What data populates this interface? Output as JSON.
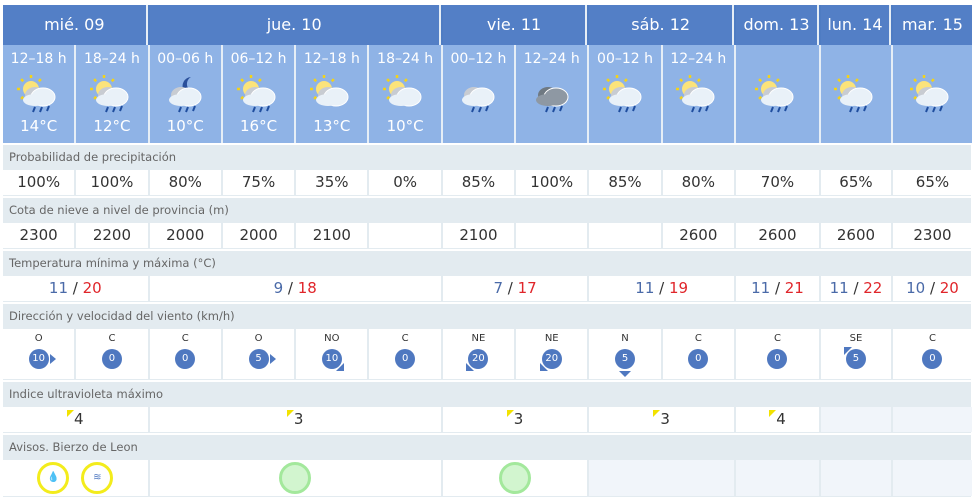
{
  "days": [
    {
      "label": "mié. 09",
      "tmin": "11",
      "tmax": "20",
      "uv": "4",
      "avisos": [
        "rain",
        "wind"
      ]
    },
    {
      "label": "jue. 10",
      "tmin": "9",
      "tmax": "18",
      "uv": "3",
      "avisos": [
        "green"
      ]
    },
    {
      "label": "vie. 11",
      "tmin": "7",
      "tmax": "17",
      "uv": "3",
      "avisos": [
        "green"
      ]
    },
    {
      "label": "sáb. 12",
      "tmin": "11",
      "tmax": "19",
      "uv": "3",
      "avisos": []
    },
    {
      "label": "dom. 13",
      "tmin": "11",
      "tmax": "21",
      "uv": "4",
      "avisos": []
    },
    {
      "label": "lun. 14",
      "tmin": "11",
      "tmax": "22",
      "uv": "",
      "avisos": []
    },
    {
      "label": "mar. 15",
      "tmin": "10",
      "tmax": "20",
      "uv": "",
      "avisos": []
    }
  ],
  "periods": [
    {
      "time": "12–18 h",
      "icon": "sun-cloud-rain",
      "temp": "14°C",
      "prob": "100%",
      "snow": "2300",
      "wind_dir": "O",
      "wind_speed": "10"
    },
    {
      "time": "18–24 h",
      "icon": "sun-cloud-rain",
      "temp": "12°C",
      "prob": "100%",
      "snow": "2200",
      "wind_dir": "C",
      "wind_speed": "0"
    },
    {
      "time": "00–06 h",
      "icon": "moon-cloud-rain",
      "temp": "10°C",
      "prob": "80%",
      "snow": "2000",
      "wind_dir": "C",
      "wind_speed": "0"
    },
    {
      "time": "06–12 h",
      "icon": "sun-cloud-rain",
      "temp": "16°C",
      "prob": "75%",
      "snow": "2000",
      "wind_dir": "O",
      "wind_speed": "5"
    },
    {
      "time": "12–18 h",
      "icon": "sun-cloud",
      "temp": "13°C",
      "prob": "35%",
      "snow": "2100",
      "wind_dir": "NO",
      "wind_speed": "10"
    },
    {
      "time": "18–24 h",
      "icon": "sun-cloud",
      "temp": "10°C",
      "prob": "0%",
      "snow": "",
      "wind_dir": "C",
      "wind_speed": "0"
    },
    {
      "time": "00–12 h",
      "icon": "cloud-rain",
      "temp": "",
      "prob": "85%",
      "snow": "2100",
      "wind_dir": "NE",
      "wind_speed": "20"
    },
    {
      "time": "12–24 h",
      "icon": "dark-cloud-rain",
      "temp": "",
      "prob": "100%",
      "snow": "",
      "wind_dir": "NE",
      "wind_speed": "20"
    },
    {
      "time": "00–12 h",
      "icon": "sun-cloud-rain",
      "temp": "",
      "prob": "85%",
      "snow": "",
      "wind_dir": "N",
      "wind_speed": "5"
    },
    {
      "time": "12–24 h",
      "icon": "sun-cloud-rain",
      "temp": "",
      "prob": "80%",
      "snow": "2600",
      "wind_dir": "C",
      "wind_speed": "0"
    },
    {
      "time": "",
      "icon": "sun-cloud-rain",
      "temp": "",
      "prob": "70%",
      "snow": "2600",
      "wind_dir": "C",
      "wind_speed": "0"
    },
    {
      "time": "",
      "icon": "sun-cloud-rain",
      "temp": "",
      "prob": "65%",
      "snow": "2600",
      "wind_dir": "SE",
      "wind_speed": "5"
    },
    {
      "time": "",
      "icon": "sun-cloud-rain",
      "temp": "",
      "prob": "65%",
      "snow": "2300",
      "wind_dir": "C",
      "wind_speed": "0"
    }
  ],
  "labels": {
    "prob": "Probabilidad de precipitación",
    "snow": "Cota de nieve a nivel de provincia (m)",
    "temp": "Temperatura mínima y máxima (°C)",
    "wind": "Dirección y velocidad del viento (km/h)",
    "uv": "Indice ultravioleta máximo",
    "avisos": "Avisos. Bierzo de Leon"
  },
  "colors": {
    "header": "#537fc6",
    "period": "#8fb3e6",
    "wind_badge": "#4f78c0",
    "tmax": "#e0252a",
    "tmin": "#4a6aa8",
    "uv_flag": "#f2e200",
    "warning_yellow": "#f3ec1c",
    "no_warning_green": "#a3e89c"
  }
}
